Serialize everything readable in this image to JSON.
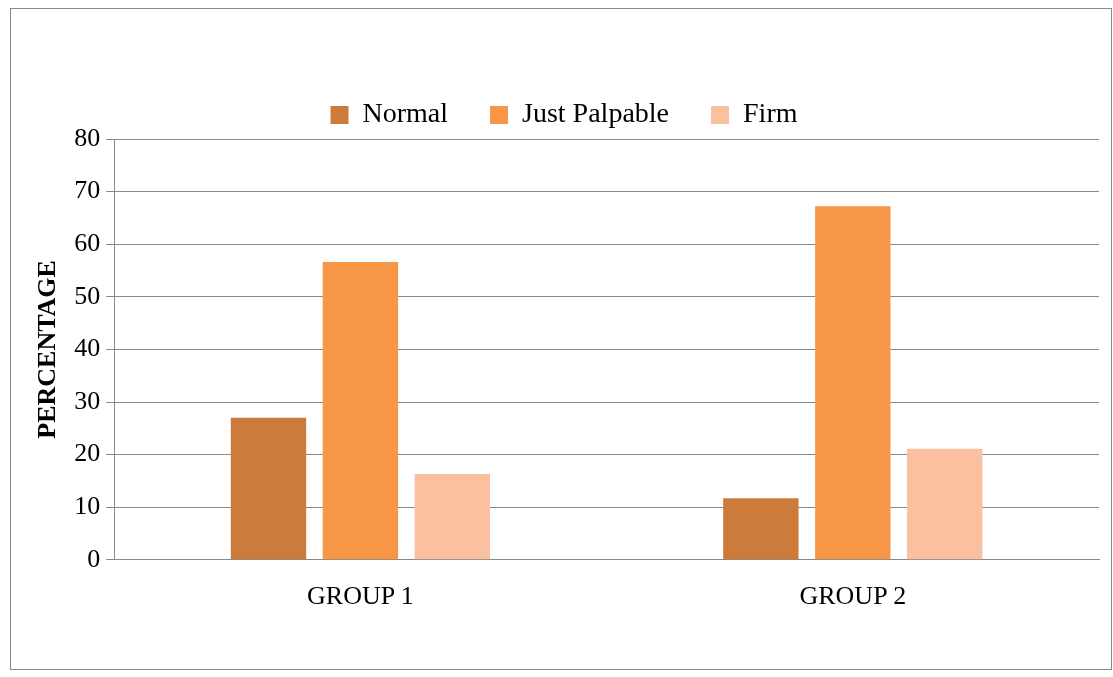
{
  "chart_data": {
    "type": "bar",
    "ylabel": "PERCENTAGE",
    "categories": [
      "GROUP 1",
      "GROUP 2"
    ],
    "series": [
      {
        "name": "Normal",
        "color": "#cd7b3a",
        "values": [
          27,
          11.7
        ]
      },
      {
        "name": "Just Palpable",
        "color": "#f79646",
        "values": [
          56.6,
          67.2
        ]
      },
      {
        "name": "Firm",
        "color": "#fac09f",
        "values": [
          16.3,
          21.1
        ]
      }
    ],
    "ylim": [
      0,
      80
    ],
    "yticks": [
      0,
      10,
      20,
      30,
      40,
      50,
      60,
      70,
      80
    ],
    "grid": "y",
    "legend": "top"
  }
}
